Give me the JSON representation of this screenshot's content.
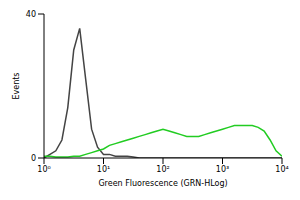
{
  "chart_data": {
    "type": "line",
    "x_label": "Green Fluorescence (GRN-HLog)",
    "y_label": "Events",
    "log": "x",
    "xlim": [
      1,
      10000
    ],
    "xticks": [
      {
        "value": 1,
        "label": "10⁰"
      },
      {
        "value": 10,
        "label": "10¹"
      },
      {
        "value": 100,
        "label": "10²"
      },
      {
        "value": 1000,
        "label": "10³"
      },
      {
        "value": 10000,
        "label": "10⁴"
      }
    ],
    "ylim": [
      0,
      40
    ],
    "yticks": [
      0,
      40
    ],
    "grid": false,
    "x": [
      1,
      1.26,
      1.58,
      2,
      2.51,
      3.16,
      3.98,
      5.01,
      6.31,
      7.94,
      10,
      12.6,
      15.8,
      20,
      25.1,
      31.6,
      39.8,
      50.1,
      63.1,
      79.4,
      100,
      126,
      158,
      200,
      251,
      316,
      398,
      501,
      631,
      794,
      1000,
      1259,
      1585,
      1995,
      2512,
      3162,
      3981,
      5012,
      6310,
      7943,
      10000
    ],
    "series": [
      {
        "color": "#444444",
        "values": [
          0,
          1,
          2,
          5,
          14,
          30,
          36,
          22,
          8,
          3,
          1,
          1,
          0.5,
          0.5,
          0.5,
          0.3,
          0,
          0,
          0,
          0,
          0,
          0,
          0,
          0,
          0,
          0,
          0,
          0,
          0,
          0,
          0,
          0,
          0,
          0,
          0,
          0,
          0,
          0,
          0,
          0,
          0
        ]
      },
      {
        "color": "#22cc22",
        "values": [
          0.5,
          0.5,
          0.3,
          0.3,
          0.3,
          0.5,
          0.5,
          1,
          1.5,
          2,
          2.5,
          3.5,
          4,
          4.5,
          5,
          5.5,
          6,
          6.5,
          7,
          7.5,
          8,
          7.5,
          7,
          6.5,
          6,
          6,
          6,
          6.5,
          7,
          7.5,
          8,
          8.5,
          9,
          9,
          9,
          9,
          8.5,
          7.5,
          5,
          2,
          0.5
        ]
      }
    ]
  }
}
